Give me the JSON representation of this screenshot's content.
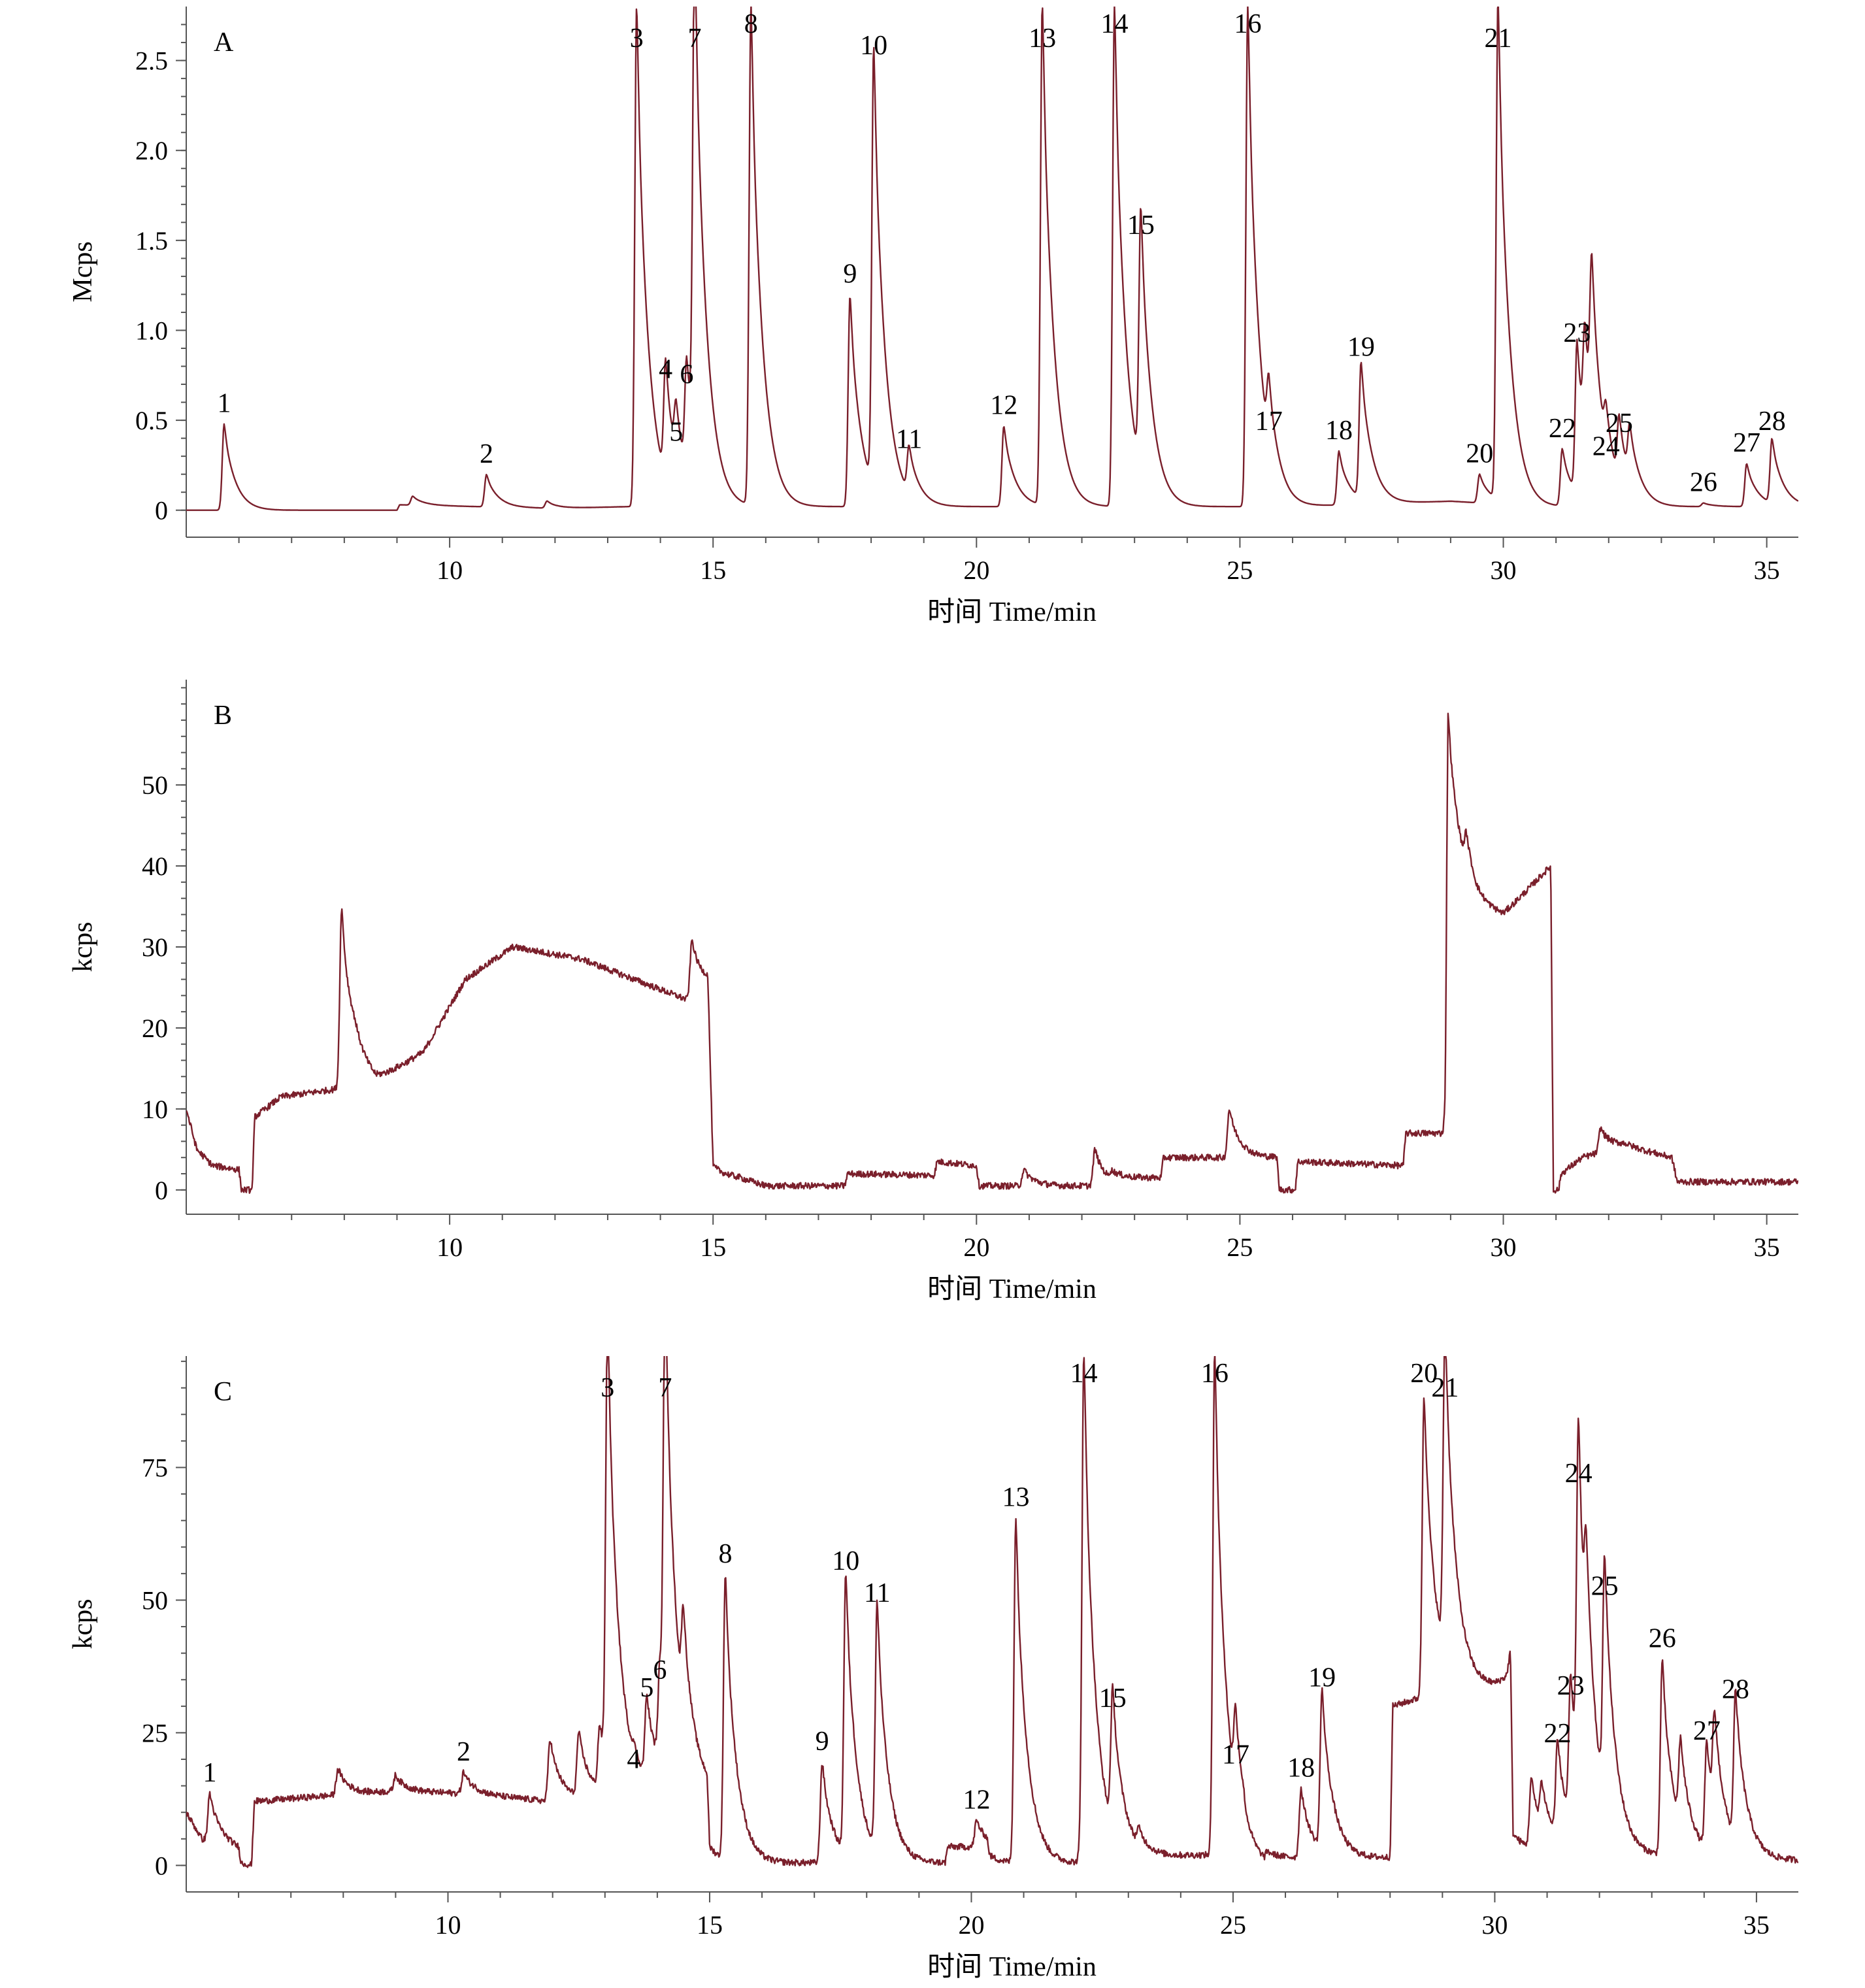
{
  "colors": {
    "trace": "#7a1f2b",
    "axis": "#555555",
    "text": "#000000"
  },
  "chart_data": [
    {
      "type": "line",
      "panel": "A",
      "ylabel": "Mcps",
      "xlabel": "时间 Time/min",
      "xlim": [
        5.0,
        35.6
      ],
      "ylim": [
        -0.15,
        2.8
      ],
      "xticks": [
        10,
        15,
        20,
        25,
        30,
        35
      ],
      "yticks": [
        0,
        0.5,
        1.0,
        1.5,
        2.0,
        2.5
      ],
      "ytick_labels": [
        "0",
        "0.5",
        "1.0",
        "1.5",
        "2.0",
        "2.5"
      ],
      "baseline": [
        [
          5.0,
          0.0
        ],
        [
          9.0,
          0.0
        ],
        [
          9.05,
          0.03
        ],
        [
          12.0,
          0.01
        ],
        [
          13.4,
          0.02
        ],
        [
          16.0,
          0.02
        ],
        [
          19.0,
          0.02
        ],
        [
          22.0,
          0.02
        ],
        [
          26.0,
          0.02
        ],
        [
          29.0,
          0.05
        ],
        [
          30.8,
          0.02
        ],
        [
          33.5,
          0.02
        ],
        [
          35.6,
          0.02
        ]
      ],
      "peaks": [
        {
          "label": "1",
          "x": 5.72,
          "height": 0.48
        },
        {
          "label": "",
          "x": 9.3,
          "height": 0.05
        },
        {
          "label": "2",
          "x": 10.7,
          "height": 0.18
        },
        {
          "label": "",
          "x": 11.85,
          "height": 0.04
        },
        {
          "label": "3",
          "x": 13.55,
          "height": 2.8
        },
        {
          "label": "4",
          "x": 14.1,
          "height": 0.65
        },
        {
          "label": "5",
          "x": 14.3,
          "height": 0.3
        },
        {
          "label": "6",
          "x": 14.5,
          "height": 0.62
        },
        {
          "label": "7",
          "x": 14.65,
          "height": 2.8
        },
        {
          "label": "8",
          "x": 15.72,
          "height": 2.8
        },
        {
          "label": "9",
          "x": 17.6,
          "height": 1.18
        },
        {
          "label": "10",
          "x": 18.05,
          "height": 2.45
        },
        {
          "label": "11",
          "x": 18.72,
          "height": 0.26
        },
        {
          "label": "12",
          "x": 20.52,
          "height": 0.45
        },
        {
          "label": "13",
          "x": 21.25,
          "height": 2.8
        },
        {
          "label": "14",
          "x": 22.62,
          "height": 2.8
        },
        {
          "label": "15",
          "x": 23.12,
          "height": 1.45
        },
        {
          "label": "16",
          "x": 25.15,
          "height": 2.8
        },
        {
          "label": "17",
          "x": 25.55,
          "height": 0.36
        },
        {
          "label": "18",
          "x": 26.88,
          "height": 0.3
        },
        {
          "label": "19",
          "x": 27.3,
          "height": 0.76
        },
        {
          "label": "20",
          "x": 29.55,
          "height": 0.16
        },
        {
          "label": "21",
          "x": 29.9,
          "height": 2.8
        },
        {
          "label": "22",
          "x": 31.12,
          "height": 0.32
        },
        {
          "label": "23",
          "x": 31.4,
          "height": 0.85
        },
        {
          "label": "",
          "x": 31.55,
          "height": 0.6
        },
        {
          "label": "",
          "x": 31.68,
          "height": 0.88
        },
        {
          "label": "24",
          "x": 31.95,
          "height": 0.22
        },
        {
          "label": "25",
          "x": 32.2,
          "height": 0.35
        },
        {
          "label": "",
          "x": 32.4,
          "height": 0.28
        },
        {
          "label": "26",
          "x": 33.8,
          "height": 0.02
        },
        {
          "label": "27",
          "x": 34.62,
          "height": 0.24
        },
        {
          "label": "28",
          "x": 35.1,
          "height": 0.36
        }
      ]
    },
    {
      "type": "line",
      "panel": "B",
      "ylabel": "kcps",
      "xlabel": "时间 Time/min",
      "xlim": [
        5.0,
        35.6
      ],
      "ylim": [
        -3,
        63
      ],
      "xticks": [
        10,
        15,
        20,
        25,
        30,
        35
      ],
      "yticks": [
        0,
        10,
        20,
        30,
        40,
        50
      ],
      "ytick_labels": [
        "0",
        "10",
        "20",
        "30",
        "40",
        "50"
      ],
      "baseline": [
        [
          5.0,
          10.0
        ],
        [
          5.2,
          5.0
        ],
        [
          5.5,
          3.0
        ],
        [
          6.0,
          2.5
        ],
        [
          6.05,
          0.0
        ],
        [
          6.25,
          0.0
        ],
        [
          6.3,
          9.0
        ],
        [
          6.8,
          11.5
        ],
        [
          7.9,
          12.5
        ],
        [
          8.2,
          15.0
        ],
        [
          8.6,
          13.5
        ],
        [
          9.5,
          17.0
        ],
        [
          10.3,
          26.0
        ],
        [
          11.2,
          30.0
        ],
        [
          12.5,
          28.5
        ],
        [
          13.5,
          26.0
        ],
        [
          14.5,
          23.5
        ],
        [
          14.9,
          25.0
        ],
        [
          15.0,
          2.0
        ],
        [
          15.5,
          1.5
        ],
        [
          16.0,
          0.5
        ],
        [
          17.5,
          0.5
        ],
        [
          17.55,
          2.0
        ],
        [
          19.2,
          1.8
        ],
        [
          19.25,
          3.5
        ],
        [
          20.0,
          3.0
        ],
        [
          20.05,
          0.5
        ],
        [
          22.5,
          0.5
        ],
        [
          22.55,
          1.5
        ],
        [
          23.5,
          1.5
        ],
        [
          23.55,
          4.0
        ],
        [
          25.7,
          4.0
        ],
        [
          25.75,
          0.0
        ],
        [
          26.05,
          0.0
        ],
        [
          26.1,
          3.5
        ],
        [
          28.1,
          3.0
        ],
        [
          28.15,
          7.0
        ],
        [
          28.9,
          7.0
        ],
        [
          28.95,
          40.0
        ],
        [
          29.5,
          35.0
        ],
        [
          30.0,
          34.0
        ],
        [
          30.9,
          40.0
        ],
        [
          30.95,
          0.0
        ],
        [
          31.05,
          0.0
        ],
        [
          31.1,
          2.0
        ],
        [
          31.5,
          4.0
        ],
        [
          32.3,
          5.5
        ],
        [
          33.2,
          4.0
        ],
        [
          33.3,
          1.0
        ],
        [
          35.6,
          1.0
        ]
      ],
      "peaks": [
        {
          "label": "",
          "x": 7.95,
          "height": 22.0
        },
        {
          "label": "",
          "x": 14.6,
          "height": 7.0
        },
        {
          "label": "",
          "x": 20.9,
          "height": 2.0
        },
        {
          "label": "",
          "x": 22.25,
          "height": 4.5
        },
        {
          "label": "",
          "x": 24.8,
          "height": 6.0
        },
        {
          "label": "",
          "x": 28.95,
          "height": 19.0
        },
        {
          "label": "",
          "x": 29.3,
          "height": 4.0
        },
        {
          "label": "",
          "x": 31.85,
          "height": 3.0
        }
      ]
    },
    {
      "type": "line",
      "panel": "C",
      "ylabel": "kcps",
      "xlabel": "时间 Time/min",
      "xlim": [
        5.0,
        35.8
      ],
      "ylim": [
        -5,
        96
      ],
      "xticks": [
        10,
        15,
        20,
        25,
        30,
        35
      ],
      "yticks": [
        0,
        25,
        50,
        75
      ],
      "ytick_labels": [
        "0",
        "25",
        "50",
        "75"
      ],
      "baseline": [
        [
          5.0,
          10.0
        ],
        [
          5.3,
          5.0
        ],
        [
          6.0,
          3.0
        ],
        [
          6.05,
          0.0
        ],
        [
          6.25,
          0.0
        ],
        [
          6.3,
          12.0
        ],
        [
          7.5,
          13.0
        ],
        [
          9.0,
          14.0
        ],
        [
          10.5,
          13.5
        ],
        [
          12.0,
          12.0
        ],
        [
          13.0,
          13.0
        ],
        [
          14.0,
          15.0
        ],
        [
          14.95,
          14.0
        ],
        [
          15.0,
          1.0
        ],
        [
          16.0,
          0.5
        ],
        [
          19.5,
          0.5
        ],
        [
          19.55,
          3.5
        ],
        [
          20.3,
          3.5
        ],
        [
          20.35,
          0.5
        ],
        [
          22.0,
          0.5
        ],
        [
          22.05,
          1.5
        ],
        [
          24.6,
          2.0
        ],
        [
          25.2,
          2.0
        ],
        [
          25.25,
          0.0
        ],
        [
          25.6,
          0.0
        ],
        [
          25.65,
          1.5
        ],
        [
          28.0,
          1.5
        ],
        [
          28.05,
          30.0
        ],
        [
          28.7,
          32.0
        ],
        [
          29.1,
          33.0
        ],
        [
          30.0,
          34.0
        ],
        [
          30.3,
          36.0
        ],
        [
          30.35,
          3.0
        ],
        [
          31.0,
          3.0
        ],
        [
          31.8,
          3.0
        ],
        [
          33.0,
          2.0
        ],
        [
          34.0,
          1.5
        ],
        [
          35.8,
          1.0
        ]
      ],
      "peaks": [
        {
          "label": "1",
          "x": 5.45,
          "height": 9.0
        },
        {
          "label": "",
          "x": 7.9,
          "height": 5.0
        },
        {
          "label": "",
          "x": 9.0,
          "height": 3.0
        },
        {
          "label": "2",
          "x": 10.3,
          "height": 4.0
        },
        {
          "label": "",
          "x": 11.95,
          "height": 12.0
        },
        {
          "label": "",
          "x": 12.5,
          "height": 12.0
        },
        {
          "label": "",
          "x": 12.9,
          "height": 12.0
        },
        {
          "label": "3",
          "x": 13.05,
          "height": 85.0
        },
        {
          "label": "4",
          "x": 13.55,
          "height": 2.0
        },
        {
          "label": "5",
          "x": 13.8,
          "height": 15.0
        },
        {
          "label": "6",
          "x": 14.05,
          "height": 18.0
        },
        {
          "label": "7",
          "x": 14.15,
          "height": 82.0
        },
        {
          "label": "",
          "x": 14.5,
          "height": 18.0
        },
        {
          "label": "8",
          "x": 15.3,
          "height": 54.0
        },
        {
          "label": "9",
          "x": 17.15,
          "height": 19.0
        },
        {
          "label": "10",
          "x": 17.6,
          "height": 53.0
        },
        {
          "label": "11",
          "x": 18.2,
          "height": 47.0
        },
        {
          "label": "12",
          "x": 20.1,
          "height": 5.0
        },
        {
          "label": "13",
          "x": 20.85,
          "height": 65.0
        },
        {
          "label": "14",
          "x": 22.15,
          "height": 96.0
        },
        {
          "label": "15",
          "x": 22.7,
          "height": 26.0
        },
        {
          "label": "",
          "x": 23.2,
          "height": 3.0
        },
        {
          "label": "16",
          "x": 24.65,
          "height": 96.0
        },
        {
          "label": "17",
          "x": 25.05,
          "height": 15.0
        },
        {
          "label": "18",
          "x": 26.3,
          "height": 13.0
        },
        {
          "label": "19",
          "x": 26.7,
          "height": 30.0
        },
        {
          "label": "20",
          "x": 28.65,
          "height": 57.0
        },
        {
          "label": "21",
          "x": 29.05,
          "height": 62.0
        },
        {
          "label": "",
          "x": 30.3,
          "height": 4.0
        },
        {
          "label": "",
          "x": 30.7,
          "height": 13.0
        },
        {
          "label": "",
          "x": 30.9,
          "height": 8.0
        },
        {
          "label": "22",
          "x": 31.2,
          "height": 18.0
        },
        {
          "label": "23",
          "x": 31.45,
          "height": 27.0
        },
        {
          "label": "24",
          "x": 31.6,
          "height": 67.0
        },
        {
          "label": "",
          "x": 31.75,
          "height": 22.0
        },
        {
          "label": "25",
          "x": 32.1,
          "height": 46.0
        },
        {
          "label": "26",
          "x": 33.2,
          "height": 37.0
        },
        {
          "label": "",
          "x": 33.55,
          "height": 16.0
        },
        {
          "label": "27",
          "x": 34.05,
          "height": 20.0
        },
        {
          "label": "",
          "x": 34.2,
          "height": 18.0
        },
        {
          "label": "28",
          "x": 34.6,
          "height": 28.0
        }
      ]
    }
  ]
}
